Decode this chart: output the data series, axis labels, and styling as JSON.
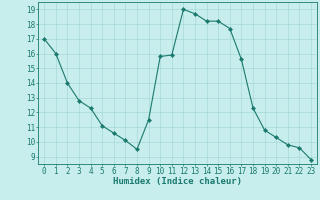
{
  "x": [
    0,
    1,
    2,
    3,
    4,
    5,
    6,
    7,
    8,
    9,
    10,
    11,
    12,
    13,
    14,
    15,
    16,
    17,
    18,
    19,
    20,
    21,
    22,
    23
  ],
  "y": [
    17,
    16,
    14,
    12.8,
    12.3,
    11.1,
    10.6,
    10.1,
    9.5,
    11.5,
    15.8,
    15.9,
    19.0,
    18.7,
    18.2,
    18.2,
    17.7,
    15.6,
    12.3,
    10.8,
    10.3,
    9.8,
    9.6,
    8.8
  ],
  "line_color": "#1a7a6e",
  "marker_color": "#1a7a6e",
  "bg_color": "#c8eded",
  "grid_color": "#a8d8d8",
  "axis_label": "Humidex (Indice chaleur)",
  "xlim": [
    -0.5,
    23.5
  ],
  "ylim": [
    8.5,
    19.5
  ],
  "yticks": [
    9,
    10,
    11,
    12,
    13,
    14,
    15,
    16,
    17,
    18,
    19
  ],
  "xticks": [
    0,
    1,
    2,
    3,
    4,
    5,
    6,
    7,
    8,
    9,
    10,
    11,
    12,
    13,
    14,
    15,
    16,
    17,
    18,
    19,
    20,
    21,
    22,
    23
  ]
}
